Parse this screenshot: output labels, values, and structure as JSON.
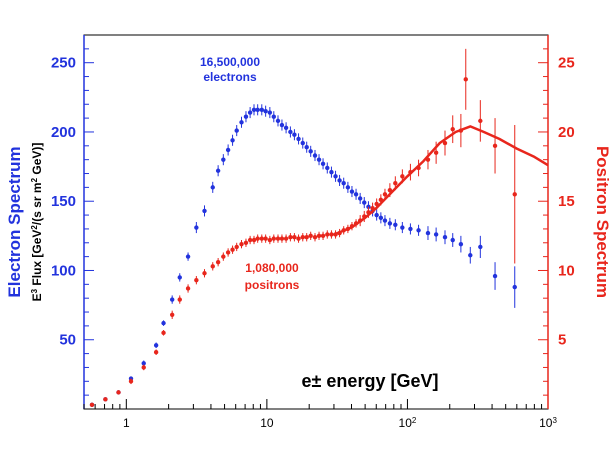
{
  "chart_data": {
    "type": "scatter",
    "xlabel": "e± energy [GeV]",
    "xscale": "log",
    "xlim": [
      0.5,
      1000
    ],
    "xticks": [
      {
        "value": 1,
        "base": "1",
        "exp": ""
      },
      {
        "value": 10,
        "base": "10",
        "exp": ""
      },
      {
        "value": 100,
        "base": "10",
        "exp": "2"
      },
      {
        "value": 1000,
        "base": "10",
        "exp": "3"
      }
    ],
    "ylabel_left": {
      "line1": "Electron Spectrum",
      "line2_prefix": "E",
      "line2_sup": "3",
      "line2_rest": " Flux [GeV",
      "line2_sup2": "2",
      "line2_rest2": "/(s sr m",
      "line2_sup3": "2",
      "line2_rest3": " GeV)]"
    },
    "ylim_left": [
      0,
      270
    ],
    "yticks_left": [
      50,
      100,
      150,
      200,
      250
    ],
    "ylabel_right": "Positron Spectrum",
    "ylim_right": [
      0,
      27
    ],
    "yticks_right": [
      5,
      10,
      15,
      20,
      25
    ],
    "grid": false,
    "colors": {
      "electron": "#2233dd",
      "positron": "#e8261c",
      "axis": "#000000"
    },
    "annotations": {
      "electron_count": "16,500,000",
      "electron_word": "electrons",
      "positron_count": "1,080,000",
      "positron_word": "positrons"
    },
    "series": [
      {
        "axis": "left",
        "points": [
          [
            0.57,
            3,
            1
          ],
          [
            0.71,
            7,
            1
          ],
          [
            0.88,
            12,
            1
          ],
          [
            1.08,
            22,
            1
          ],
          [
            1.33,
            33,
            2
          ],
          [
            1.63,
            46,
            2
          ],
          [
            1.84,
            62,
            2
          ],
          [
            2.12,
            79,
            3
          ],
          [
            2.4,
            95,
            3
          ],
          [
            2.75,
            110,
            3
          ],
          [
            3.15,
            131,
            4
          ],
          [
            3.6,
            143,
            4
          ],
          [
            4.12,
            160,
            4
          ],
          [
            4.5,
            172,
            4
          ],
          [
            4.9,
            180,
            4
          ],
          [
            5.3,
            187,
            4
          ],
          [
            5.7,
            194,
            4
          ],
          [
            6.1,
            201,
            4
          ],
          [
            6.6,
            207,
            4
          ],
          [
            7.1,
            211,
            4
          ],
          [
            7.6,
            214,
            4
          ],
          [
            8.1,
            216,
            4
          ],
          [
            8.6,
            216,
            4
          ],
          [
            9.2,
            216,
            4
          ],
          [
            9.8,
            215,
            4
          ],
          [
            10.5,
            214,
            4
          ],
          [
            11.2,
            211,
            4
          ],
          [
            12,
            208,
            4
          ],
          [
            12.8,
            205,
            4
          ],
          [
            13.7,
            203,
            4
          ],
          [
            14.7,
            200,
            4
          ],
          [
            15.7,
            198,
            4
          ],
          [
            16.8,
            195,
            4
          ],
          [
            18,
            192,
            4
          ],
          [
            19.2,
            189,
            4
          ],
          [
            20.5,
            186,
            4
          ],
          [
            22,
            183,
            4
          ],
          [
            23.5,
            180,
            4
          ],
          [
            25.1,
            177,
            4
          ],
          [
            26.9,
            174,
            4
          ],
          [
            28.8,
            171,
            4
          ],
          [
            30.8,
            168,
            4
          ],
          [
            32.9,
            165,
            4
          ],
          [
            35.2,
            163,
            4
          ],
          [
            37.7,
            160,
            4
          ],
          [
            40.3,
            157,
            4
          ],
          [
            43.1,
            155,
            4
          ],
          [
            46.1,
            152,
            4
          ],
          [
            49.3,
            149,
            4
          ],
          [
            52.8,
            146,
            4
          ],
          [
            56.5,
            143,
            4
          ],
          [
            60.4,
            140,
            4
          ],
          [
            64.7,
            138,
            4
          ],
          [
            69.2,
            136,
            4
          ],
          [
            75,
            134,
            4
          ],
          [
            82,
            133,
            4
          ],
          [
            92,
            131,
            4
          ],
          [
            105,
            130,
            4
          ],
          [
            120,
            129,
            4
          ],
          [
            140,
            127,
            5
          ],
          [
            160,
            126,
            5
          ],
          [
            185,
            124,
            5
          ],
          [
            210,
            122,
            5
          ],
          [
            240,
            119,
            6
          ],
          [
            280,
            111,
            6
          ],
          [
            330,
            117,
            8
          ],
          [
            420,
            96,
            10
          ],
          [
            580,
            88,
            15
          ]
        ]
      },
      {
        "axis": "right",
        "points": [
          [
            0.57,
            0.3,
            0.1
          ],
          [
            0.71,
            0.7,
            0.1
          ],
          [
            0.88,
            1.2,
            0.1
          ],
          [
            1.08,
            2.0,
            0.2
          ],
          [
            1.33,
            3.0,
            0.2
          ],
          [
            1.63,
            4.1,
            0.2
          ],
          [
            1.84,
            5.5,
            0.2
          ],
          [
            2.12,
            6.8,
            0.3
          ],
          [
            2.4,
            7.9,
            0.3
          ],
          [
            2.75,
            8.7,
            0.3
          ],
          [
            3.15,
            9.3,
            0.3
          ],
          [
            3.6,
            9.8,
            0.3
          ],
          [
            4.12,
            10.3,
            0.3
          ],
          [
            4.5,
            10.6,
            0.3
          ],
          [
            4.9,
            11.0,
            0.3
          ],
          [
            5.3,
            11.3,
            0.3
          ],
          [
            5.7,
            11.5,
            0.3
          ],
          [
            6.1,
            11.7,
            0.3
          ],
          [
            6.6,
            11.9,
            0.3
          ],
          [
            7.1,
            12.0,
            0.3
          ],
          [
            7.6,
            12.2,
            0.3
          ],
          [
            8.1,
            12.2,
            0.3
          ],
          [
            8.6,
            12.3,
            0.3
          ],
          [
            9.2,
            12.3,
            0.3
          ],
          [
            9.8,
            12.3,
            0.3
          ],
          [
            10.5,
            12.2,
            0.3
          ],
          [
            11.2,
            12.3,
            0.3
          ],
          [
            12,
            12.3,
            0.3
          ],
          [
            12.8,
            12.3,
            0.3
          ],
          [
            13.7,
            12.3,
            0.3
          ],
          [
            14.7,
            12.4,
            0.3
          ],
          [
            15.7,
            12.4,
            0.3
          ],
          [
            16.8,
            12.3,
            0.3
          ],
          [
            18,
            12.4,
            0.3
          ],
          [
            19.2,
            12.4,
            0.3
          ],
          [
            20.5,
            12.5,
            0.3
          ],
          [
            22,
            12.4,
            0.3
          ],
          [
            23.5,
            12.5,
            0.3
          ],
          [
            25.1,
            12.5,
            0.3
          ],
          [
            26.9,
            12.6,
            0.3
          ],
          [
            28.8,
            12.6,
            0.3
          ],
          [
            30.8,
            12.6,
            0.3
          ],
          [
            32.9,
            12.7,
            0.3
          ],
          [
            35.2,
            12.9,
            0.3
          ],
          [
            37.7,
            13.0,
            0.3
          ],
          [
            40.3,
            13.2,
            0.3
          ],
          [
            43.1,
            13.4,
            0.3
          ],
          [
            46.1,
            13.6,
            0.4
          ],
          [
            49.3,
            13.9,
            0.4
          ],
          [
            52.8,
            14.2,
            0.4
          ],
          [
            56.5,
            14.5,
            0.4
          ],
          [
            60.4,
            14.8,
            0.4
          ],
          [
            64.7,
            15.1,
            0.4
          ],
          [
            69.2,
            15.5,
            0.4
          ],
          [
            75,
            15.8,
            0.5
          ],
          [
            82,
            16.3,
            0.5
          ],
          [
            92,
            16.8,
            0.5
          ],
          [
            105,
            17.1,
            0.6
          ],
          [
            120,
            17.4,
            0.6
          ],
          [
            140,
            18.0,
            0.7
          ],
          [
            160,
            18.5,
            0.8
          ],
          [
            185,
            19.2,
            0.9
          ],
          [
            210,
            20.2,
            1.0
          ],
          [
            240,
            20.1,
            1.2
          ],
          [
            260,
            23.8,
            2.2
          ],
          [
            330,
            20.8,
            1.5
          ],
          [
            420,
            19.0,
            2.0
          ],
          [
            580,
            15.5,
            5.0
          ]
        ]
      },
      {
        "axis": "right",
        "type": "line",
        "points": [
          [
            30,
            12.6
          ],
          [
            40,
            13.1
          ],
          [
            50,
            13.8
          ],
          [
            60,
            14.5
          ],
          [
            80,
            15.8
          ],
          [
            100,
            16.8
          ],
          [
            130,
            17.9
          ],
          [
            170,
            19.2
          ],
          [
            220,
            20.0
          ],
          [
            280,
            20.4
          ],
          [
            350,
            20.0
          ],
          [
            450,
            19.5
          ],
          [
            600,
            18.8
          ],
          [
            800,
            18.2
          ],
          [
            1000,
            17.6
          ]
        ]
      }
    ]
  }
}
